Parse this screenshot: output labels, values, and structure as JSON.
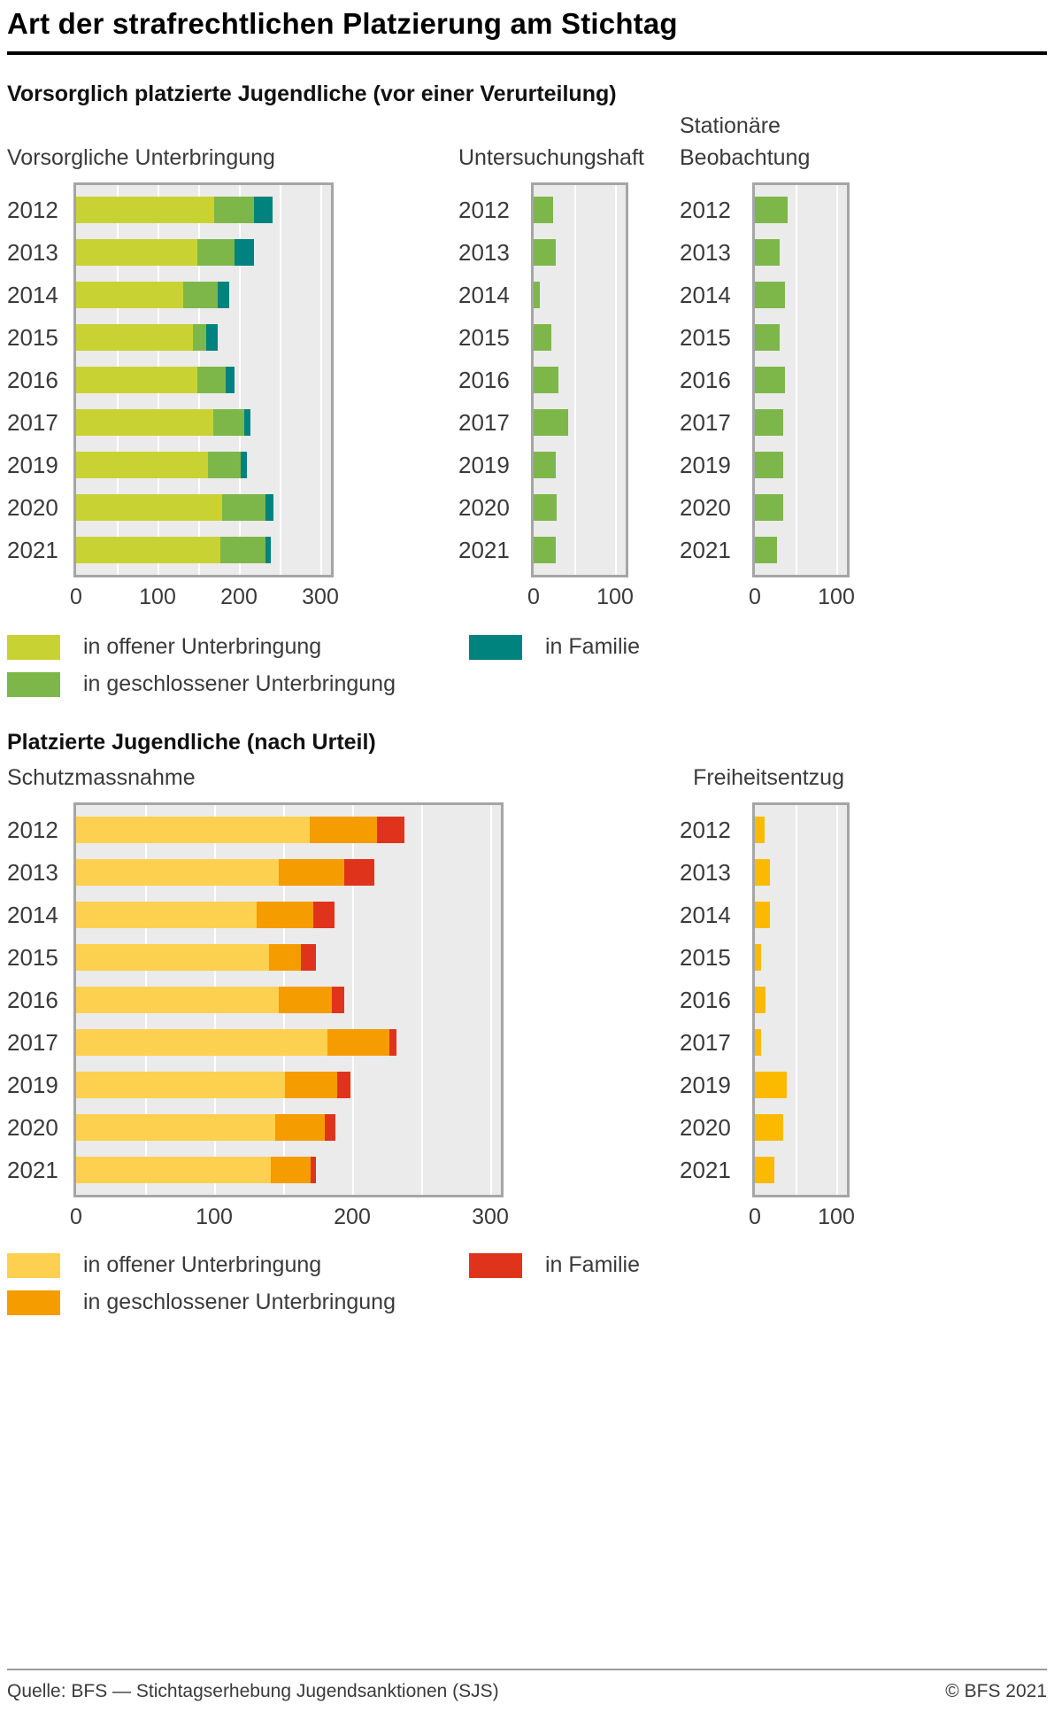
{
  "page": {
    "title": "Art der strafrechtlichen Platzierung am Stichtag",
    "source": "Quelle: BFS — Stichtagserhebung Jugendsanktionen (SJS)",
    "copyright": "© BFS 2021"
  },
  "section1": {
    "heading": "Vorsorglich platzierte Jugendliche (vor einer Verurteilung)",
    "legend": [
      {
        "label": "in offener Unterbringung",
        "color": "#c9d233"
      },
      {
        "label": "in geschlossener Unterbringung",
        "color": "#7db74a"
      },
      {
        "label": "in Familie",
        "color": "#00837e"
      }
    ]
  },
  "section2": {
    "heading": "Platzierte Jugendliche (nach Urteil)",
    "legend": [
      {
        "label": "in offener Unterbringung",
        "color": "#fdd050"
      },
      {
        "label": "in geschlossener Unterbringung",
        "color": "#f59c00"
      },
      {
        "label": "in Familie",
        "color": "#e0331c"
      }
    ]
  },
  "chart_data": [
    {
      "id": "vorsorgliche-unterbringung",
      "title": "Vorsorgliche Unterbringung",
      "type": "bar",
      "orientation": "horizontal",
      "stacked": true,
      "categories": [
        "2012",
        "2013",
        "2014",
        "2015",
        "2016",
        "2017",
        "2019",
        "2020",
        "2021"
      ],
      "series": [
        {
          "name": "in offener Unterbringung",
          "color": "#c9d233",
          "values": [
            170,
            149,
            132,
            144,
            149,
            168,
            162,
            179,
            177
          ]
        },
        {
          "name": "in geschlossener Unterbringung",
          "color": "#7db74a",
          "values": [
            49,
            46,
            42,
            16,
            35,
            39,
            40,
            54,
            56
          ]
        },
        {
          "name": "in Familie",
          "color": "#00837e",
          "values": [
            22,
            23,
            14,
            14,
            11,
            7,
            8,
            9,
            6
          ]
        }
      ],
      "xlim": [
        0,
        300
      ],
      "xticks": [
        0,
        100,
        200,
        300
      ],
      "gridline_step": 50,
      "grid": true,
      "legend_position": "below"
    },
    {
      "id": "untersuchungshaft",
      "title": "Untersuchungshaft",
      "type": "bar",
      "orientation": "horizontal",
      "stacked": false,
      "categories": [
        "2012",
        "2013",
        "2014",
        "2015",
        "2016",
        "2017",
        "2019",
        "2020",
        "2021"
      ],
      "series": [
        {
          "name": "Untersuchungshaft",
          "color": "#7db74a",
          "values": [
            24,
            27,
            8,
            22,
            30,
            42,
            27,
            28,
            27
          ]
        }
      ],
      "xlim": [
        0,
        100
      ],
      "xticks": [
        0,
        100
      ],
      "gridline_step": 50,
      "grid": true
    },
    {
      "id": "stationaere-beobachtung",
      "title": "Stationäre Beobachtung",
      "type": "bar",
      "orientation": "horizontal",
      "stacked": false,
      "categories": [
        "2012",
        "2013",
        "2014",
        "2015",
        "2016",
        "2017",
        "2019",
        "2020",
        "2021"
      ],
      "series": [
        {
          "name": "Stationäre Beobachtung",
          "color": "#7db74a",
          "values": [
            40,
            30,
            37,
            30,
            37,
            35,
            35,
            35,
            27
          ]
        }
      ],
      "xlim": [
        0,
        100
      ],
      "xticks": [
        0,
        100
      ],
      "gridline_step": 50,
      "grid": true
    },
    {
      "id": "schutzmassnahme",
      "title": "Schutzmassnahme",
      "type": "bar",
      "orientation": "horizontal",
      "stacked": true,
      "categories": [
        "2012",
        "2013",
        "2014",
        "2015",
        "2016",
        "2017",
        "2019",
        "2020",
        "2021"
      ],
      "series": [
        {
          "name": "in offener Unterbringung",
          "color": "#fdd050",
          "values": [
            169,
            147,
            131,
            140,
            147,
            182,
            151,
            144,
            141
          ]
        },
        {
          "name": "in geschlossener Unterbringung",
          "color": "#f59c00",
          "values": [
            49,
            47,
            41,
            23,
            38,
            45,
            38,
            36,
            29
          ]
        },
        {
          "name": "in Familie",
          "color": "#e0331c",
          "values": [
            20,
            22,
            15,
            11,
            9,
            5,
            10,
            8,
            4
          ]
        }
      ],
      "xlim": [
        0,
        300
      ],
      "xticks": [
        0,
        100,
        200,
        300
      ],
      "gridline_step": 50,
      "grid": true,
      "legend_position": "below"
    },
    {
      "id": "freiheitsentzug",
      "title": "Freiheitsentzug",
      "type": "bar",
      "orientation": "horizontal",
      "stacked": false,
      "categories": [
        "2012",
        "2013",
        "2014",
        "2015",
        "2016",
        "2017",
        "2019",
        "2020",
        "2021"
      ],
      "series": [
        {
          "name": "Freiheitsentzug",
          "color": "#fbba00",
          "values": [
            12,
            18,
            18,
            8,
            13,
            8,
            39,
            35,
            24
          ]
        }
      ],
      "xlim": [
        0,
        100
      ],
      "xticks": [
        0,
        100
      ],
      "gridline_step": 50,
      "grid": true
    }
  ]
}
